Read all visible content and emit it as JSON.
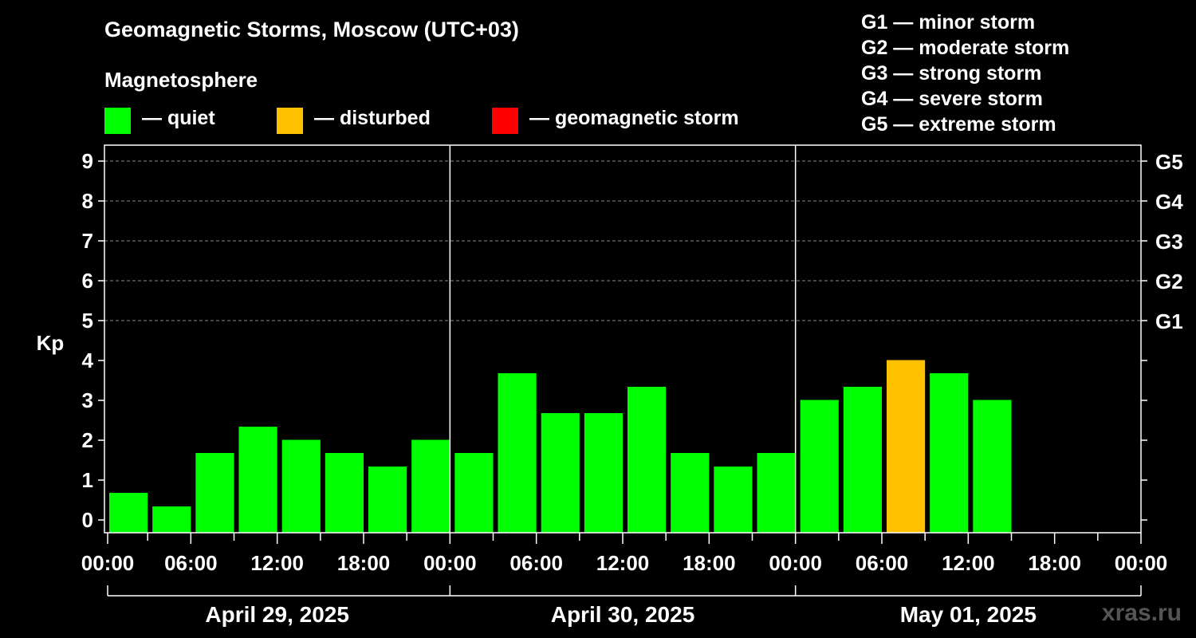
{
  "title": "Geomagnetic Storms, Moscow (UTC+03)",
  "subtitle": "Magnetosphere",
  "legend": [
    {
      "label": "— quiet",
      "color": "#00ff00"
    },
    {
      "label": "— disturbed",
      "color": "#ffc000"
    },
    {
      "label": "— geomagnetic storm",
      "color": "#ff0000"
    }
  ],
  "g_scale": [
    {
      "label": "G1 — minor storm"
    },
    {
      "label": "G2 — moderate storm"
    },
    {
      "label": "G3 — strong storm"
    },
    {
      "label": "G4 — severe storm"
    },
    {
      "label": "G5 — extreme storm"
    }
  ],
  "watermark": "xras.ru",
  "chart_data": {
    "type": "bar",
    "ylabel": "Kp",
    "ylim": [
      0,
      9
    ],
    "y_ticks": [
      "0",
      "1",
      "2",
      "3",
      "4",
      "5",
      "6",
      "7",
      "8",
      "9"
    ],
    "right_ticks": [
      {
        "kp": 5,
        "label": "G1"
      },
      {
        "kp": 6,
        "label": "G2"
      },
      {
        "kp": 7,
        "label": "G3"
      },
      {
        "kp": 8,
        "label": "G4"
      },
      {
        "kp": 9,
        "label": "G5"
      }
    ],
    "grid": "dashed horizontal at Kp 5-9",
    "x_tick_labels": [
      "00:00",
      "06:00",
      "12:00",
      "18:00",
      "00:00",
      "06:00",
      "12:00",
      "18:00",
      "00:00",
      "06:00",
      "12:00",
      "18:00",
      "00:00"
    ],
    "days": [
      "April 29, 2025",
      "April 30, 2025",
      "May 01, 2025"
    ],
    "interval_hours": 3,
    "values": [
      0.67,
      0.33,
      1.67,
      2.33,
      2.0,
      1.67,
      1.33,
      2.0,
      1.67,
      3.67,
      2.67,
      2.67,
      3.33,
      1.67,
      1.33,
      1.67,
      3.0,
      3.33,
      4.0,
      3.67,
      3.0
    ],
    "status": [
      "quiet",
      "quiet",
      "quiet",
      "quiet",
      "quiet",
      "quiet",
      "quiet",
      "quiet",
      "quiet",
      "quiet",
      "quiet",
      "quiet",
      "quiet",
      "quiet",
      "quiet",
      "quiet",
      "quiet",
      "quiet",
      "disturbed",
      "quiet",
      "quiet"
    ],
    "colors": {
      "quiet": "#00ff00",
      "disturbed": "#ffc000",
      "storm": "#ff0000"
    }
  }
}
